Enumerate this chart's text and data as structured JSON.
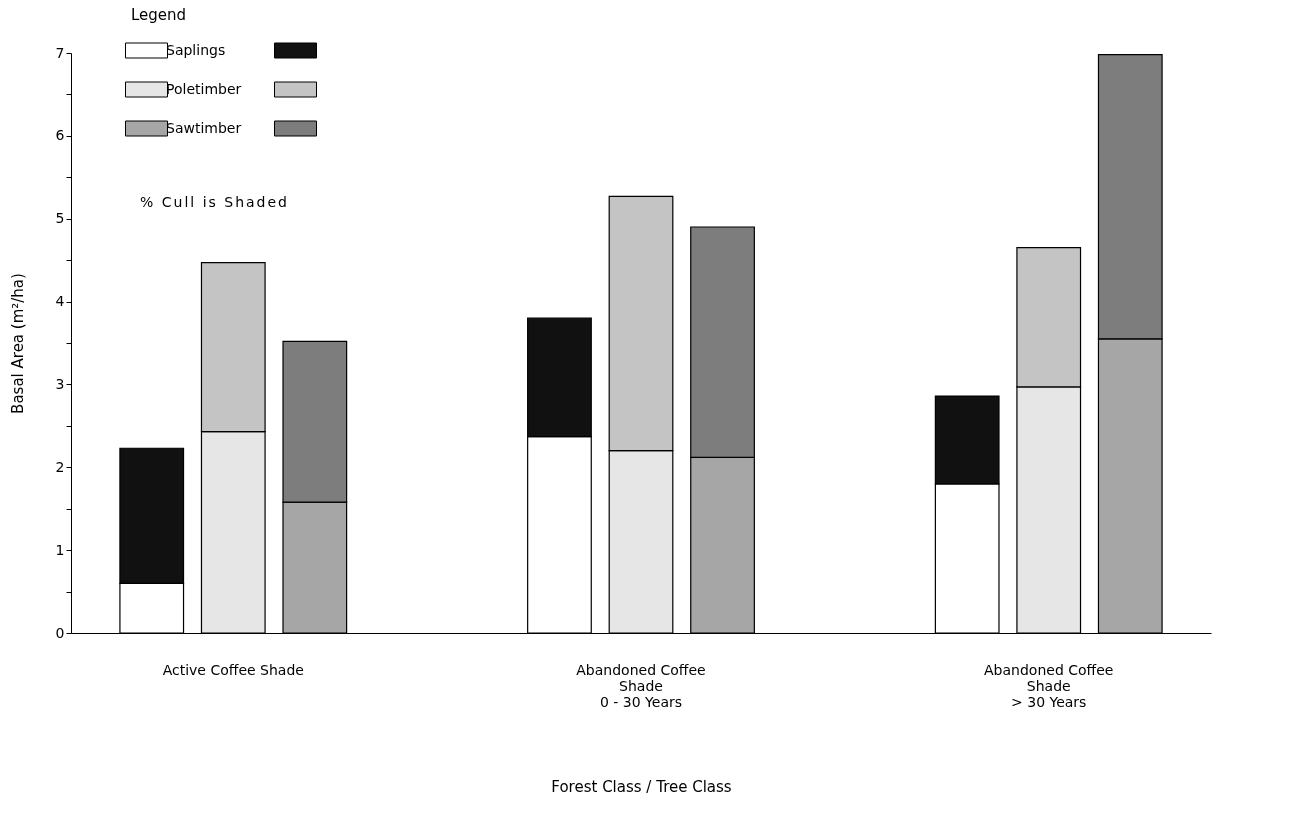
{
  "chart_data": {
    "type": "bar",
    "stacked": true,
    "xlabel": "Forest Class / Tree Class",
    "ylabel": "Basal  Area  (m²/ha)",
    "legend_title": "Legend",
    "legend": "top left",
    "grid": false,
    "categories": [
      null,
      "Active Coffee Shade",
      null,
      null,
      null,
      null,
      "Abandoned Coffee\nShade\n0 - 30 Years",
      null,
      null,
      null,
      null,
      "Abandoned Coffee\nShade\n> 30 Years",
      null
    ],
    "ylim": [
      0,
      7
    ],
    "yticks": [
      0,
      {
        "value": 0.5,
        "label": null
      },
      1,
      {
        "value": 1.5,
        "label": null
      },
      2,
      {
        "value": 2.5,
        "label": null
      },
      3,
      {
        "value": 3.5,
        "label": null
      },
      4,
      {
        "value": 4.5,
        "label": null
      },
      5,
      {
        "value": 5.5,
        "label": null
      },
      6,
      {
        "value": 6.5,
        "label": null
      },
      7
    ],
    "series": [
      {
        "name": "Saplings",
        "color": "#ffffff",
        "values": [
          0.6,
          null,
          null,
          null,
          null,
          2.37,
          null,
          null,
          null,
          null,
          1.8,
          null,
          null
        ]
      },
      {
        "color": "#111111",
        "values": [
          1.63,
          null,
          null,
          null,
          null,
          1.43,
          null,
          null,
          null,
          null,
          1.06,
          null,
          null
        ]
      },
      {
        "name": "Poletimber",
        "color": "#e6e6e6",
        "values": [
          null,
          2.43,
          null,
          null,
          null,
          null,
          2.2,
          null,
          null,
          null,
          null,
          2.97,
          null
        ]
      },
      {
        "color": "#c4c4c4",
        "values": [
          null,
          2.04,
          null,
          null,
          null,
          null,
          3.07,
          null,
          null,
          null,
          null,
          1.68,
          null
        ]
      },
      {
        "name": "Sawtimber",
        "color": "#a6a6a6",
        "values": [
          null,
          null,
          1.58,
          null,
          null,
          null,
          null,
          2.12,
          null,
          null,
          null,
          null,
          3.55
        ]
      },
      {
        "color": "#7d7d7d",
        "values": [
          null,
          null,
          1.94,
          null,
          null,
          null,
          null,
          2.78,
          null,
          null,
          null,
          null,
          3.43
        ]
      }
    ],
    "annotations": [
      "% Cull is Shaded"
    ]
  }
}
